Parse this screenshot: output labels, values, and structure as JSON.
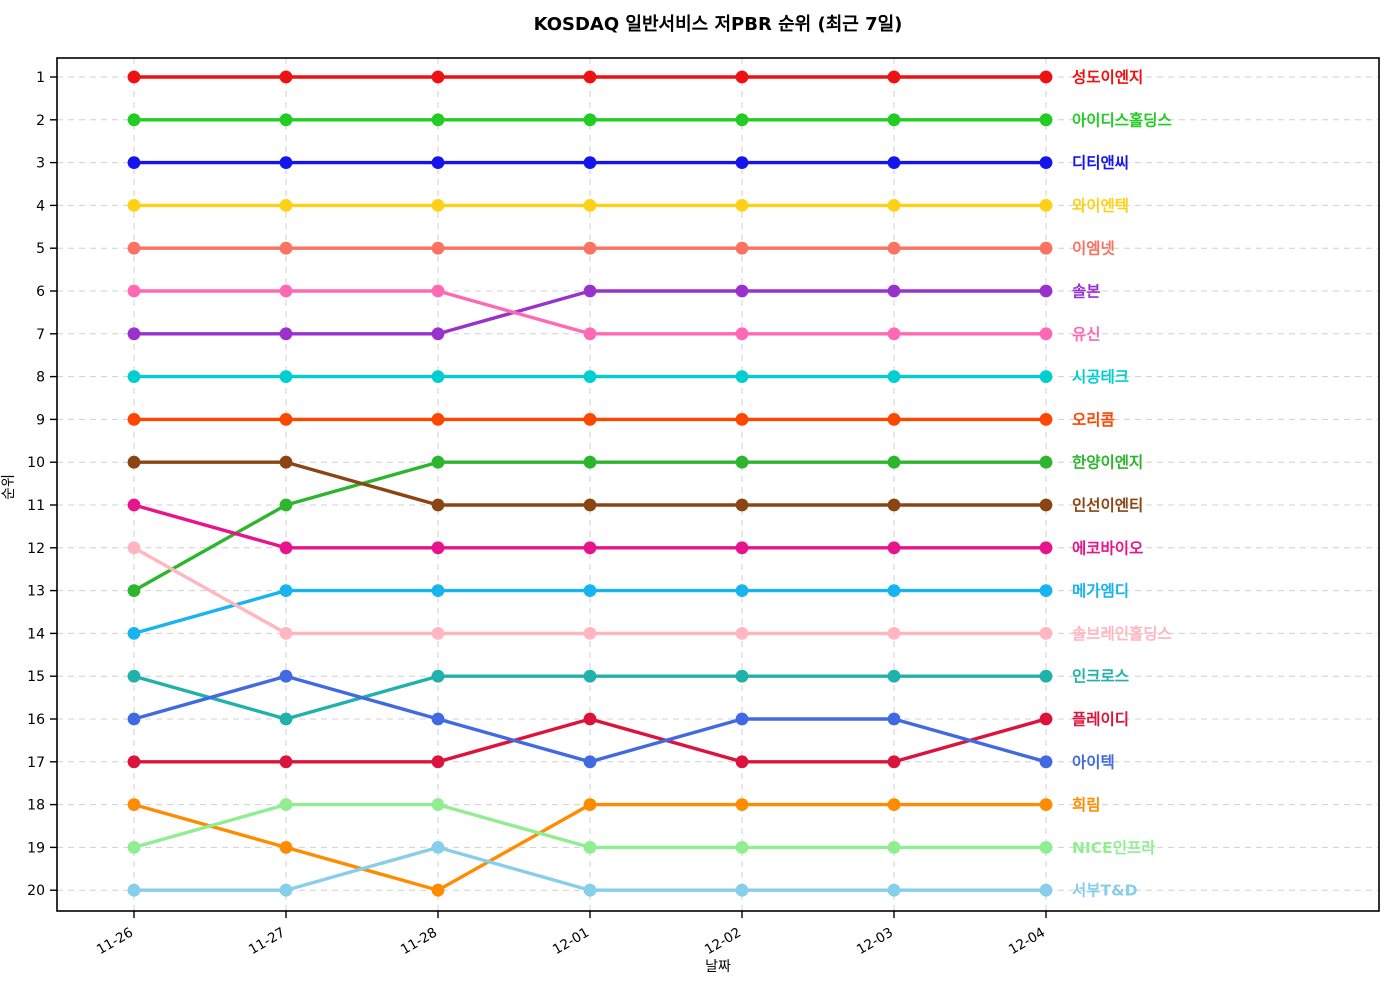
{
  "chart_data": {
    "type": "line",
    "variant": "bump_rank_chart",
    "title": "KOSDAQ 일반서비스 저PBR 순위 (최근 7일)",
    "xlabel": "날짜",
    "ylabel": "순위",
    "categories": [
      "11-26",
      "11-27",
      "11-28",
      "12-01",
      "12-02",
      "12-03",
      "12-04"
    ],
    "yticks": [
      1,
      2,
      3,
      4,
      5,
      6,
      7,
      8,
      9,
      10,
      11,
      12,
      13,
      14,
      15,
      16,
      17,
      18,
      19,
      20
    ],
    "y_axis_inverted": true,
    "grid": true,
    "legend_position": "right-of-last-point",
    "series": [
      {
        "name": "성도이엔지",
        "color": "#EE1111",
        "values": [
          1,
          1,
          1,
          1,
          1,
          1,
          1
        ]
      },
      {
        "name": "아이디스홀딩스",
        "color": "#22CC22",
        "values": [
          2,
          2,
          2,
          2,
          2,
          2,
          2
        ]
      },
      {
        "name": "디티앤씨",
        "color": "#1414EE",
        "values": [
          3,
          3,
          3,
          3,
          3,
          3,
          3
        ]
      },
      {
        "name": "와이엔텍",
        "color": "#FFD116",
        "values": [
          4,
          4,
          4,
          4,
          4,
          4,
          4
        ]
      },
      {
        "name": "이엠넷",
        "color": "#FA7262",
        "values": [
          5,
          5,
          5,
          5,
          5,
          5,
          5
        ]
      },
      {
        "name": "솔본",
        "color": "#9932CC",
        "values": [
          7,
          7,
          7,
          6,
          6,
          6,
          6
        ]
      },
      {
        "name": "유신",
        "color": "#FF69B4",
        "values": [
          6,
          6,
          6,
          7,
          7,
          7,
          7
        ]
      },
      {
        "name": "시공테크",
        "color": "#00CED1",
        "values": [
          8,
          8,
          8,
          8,
          8,
          8,
          8
        ]
      },
      {
        "name": "오리콤",
        "color": "#FF4500",
        "values": [
          9,
          9,
          9,
          9,
          9,
          9,
          9
        ]
      },
      {
        "name": "한양이엔지",
        "color": "#2EB52E",
        "values": [
          13,
          11,
          10,
          10,
          10,
          10,
          10
        ]
      },
      {
        "name": "인선이엔티",
        "color": "#8B4513",
        "values": [
          10,
          10,
          11,
          11,
          11,
          11,
          11
        ]
      },
      {
        "name": "에코바이오",
        "color": "#E8148C",
        "values": [
          11,
          12,
          12,
          12,
          12,
          12,
          12
        ]
      },
      {
        "name": "메가엠디",
        "color": "#17B4F0",
        "values": [
          14,
          13,
          13,
          13,
          13,
          13,
          13
        ]
      },
      {
        "name": "솔브레인홀딩스",
        "color": "#FFB6C1",
        "values": [
          12,
          14,
          14,
          14,
          14,
          14,
          14
        ]
      },
      {
        "name": "인크로스",
        "color": "#20B2AA",
        "values": [
          15,
          16,
          15,
          15,
          15,
          15,
          15
        ]
      },
      {
        "name": "플레이디",
        "color": "#DC143C",
        "values": [
          17,
          17,
          17,
          16,
          17,
          17,
          16
        ]
      },
      {
        "name": "아이텍",
        "color": "#4169E1",
        "values": [
          16,
          15,
          16,
          17,
          16,
          16,
          17
        ]
      },
      {
        "name": "희림",
        "color": "#FF8C00",
        "values": [
          18,
          19,
          20,
          18,
          18,
          18,
          18
        ]
      },
      {
        "name": "NICE인프라",
        "color": "#90EE90",
        "values": [
          19,
          18,
          18,
          19,
          19,
          19,
          19
        ]
      },
      {
        "name": "서부T&D",
        "color": "#87CEEB",
        "values": [
          20,
          20,
          19,
          20,
          20,
          20,
          20
        ]
      }
    ]
  }
}
